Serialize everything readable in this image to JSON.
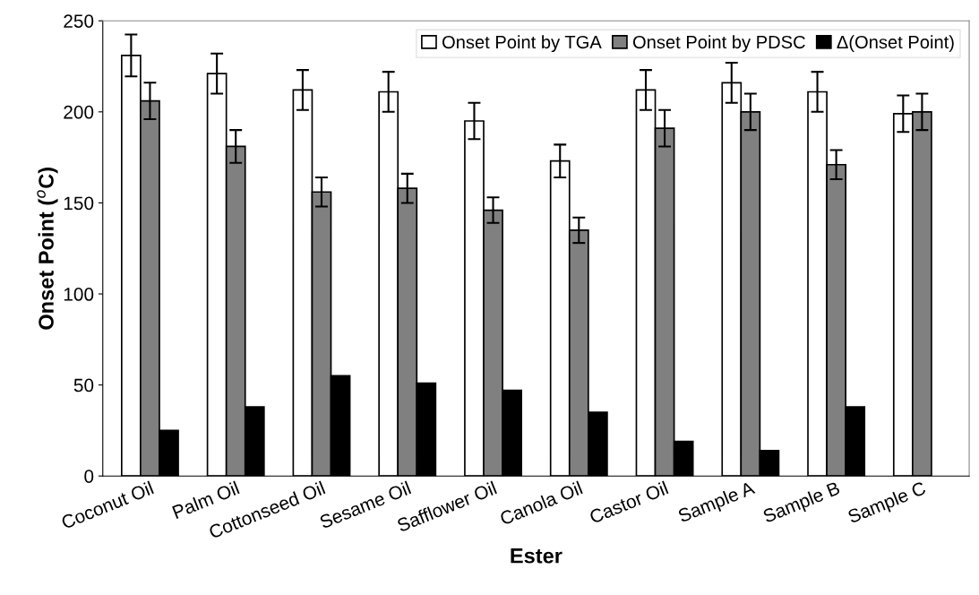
{
  "chart_data": {
    "type": "bar",
    "xlabel": "Ester",
    "ylabel": "Onset Point ($^{o}$C)",
    "categories": [
      "Coconut Oil",
      "Palm Oil",
      "Cottonseed Oil",
      "Sesame Oil",
      "Safflower Oil",
      "Canola Oil",
      "Castor Oil",
      "Sample A",
      "Sample B",
      "Sample C"
    ],
    "series": [
      {
        "name": "Onset Point by TGA",
        "color": "#ffffff",
        "values": [
          231,
          221,
          212,
          211,
          195,
          173,
          212,
          216,
          211,
          199
        ],
        "errors": [
          11.5,
          11,
          11,
          11,
          10,
          9,
          11,
          11,
          11,
          10
        ]
      },
      {
        "name": "Onset Point by PDSC",
        "color": "#808080",
        "values": [
          206,
          181,
          156,
          158,
          146,
          135,
          191,
          200,
          171,
          200
        ],
        "errors": [
          10,
          9,
          8,
          8,
          7,
          7,
          10,
          10,
          8,
          10
        ]
      },
      {
        "name": "Δ(Onset Point)",
        "color": "#000000",
        "values": [
          25,
          38,
          55,
          51,
          47,
          35,
          19,
          14,
          38,
          null
        ]
      }
    ],
    "ylim": [
      0,
      250
    ],
    "yticks": [
      0,
      50,
      100,
      150,
      200,
      250
    ],
    "grid": false,
    "legend": "top right"
  }
}
